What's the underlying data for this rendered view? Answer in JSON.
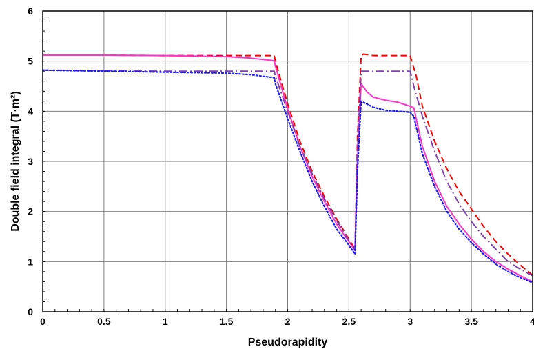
{
  "chart_data": {
    "type": "line",
    "title": "",
    "xlabel": "Pseudorapidity",
    "ylabel": "Double field integral (T·m²)",
    "xlim": [
      0,
      4
    ],
    "ylim": [
      0,
      6
    ],
    "xticks": [
      "0",
      "0.5",
      "1",
      "1.5",
      "2",
      "2.5",
      "3",
      "3.5",
      "4"
    ],
    "yticks": [
      "0",
      "1",
      "2",
      "3",
      "4",
      "5",
      "6"
    ],
    "grid": true,
    "legend": "none",
    "series": [
      {
        "style": "dashed",
        "color": "#ff0000",
        "x": [
          0,
          0.5,
          1,
          1.5,
          1.89,
          1.9,
          2.0,
          2.1,
          2.2,
          2.3,
          2.4,
          2.5,
          2.55,
          2.57,
          2.6,
          2.62,
          2.7,
          2.8,
          3.0,
          3.05,
          3.1,
          3.2,
          3.3,
          3.4,
          3.5,
          3.6,
          3.7,
          3.8,
          3.9,
          4.0
        ],
        "y": [
          5.12,
          5.12,
          5.11,
          5.11,
          5.11,
          5.0,
          4.15,
          3.4,
          2.8,
          2.3,
          1.85,
          1.45,
          1.25,
          3.5,
          5.1,
          5.14,
          5.11,
          5.11,
          5.11,
          4.7,
          4.1,
          3.4,
          2.85,
          2.4,
          2.05,
          1.7,
          1.4,
          1.15,
          0.93,
          0.73
        ]
      },
      {
        "style": "solid",
        "color": "#ff33cc",
        "x": [
          0,
          0.5,
          1,
          1.5,
          1.7,
          1.89,
          1.9,
          2.0,
          2.1,
          2.2,
          2.3,
          2.4,
          2.5,
          2.55,
          2.57,
          2.6,
          2.65,
          2.7,
          2.8,
          2.9,
          3.0,
          3.03,
          3.1,
          3.2,
          3.3,
          3.4,
          3.5,
          3.6,
          3.7,
          3.8,
          3.9,
          4.0
        ],
        "y": [
          5.12,
          5.12,
          5.11,
          5.09,
          5.06,
          5.01,
          4.9,
          4.05,
          3.3,
          2.7,
          2.2,
          1.75,
          1.4,
          1.22,
          3.0,
          4.55,
          4.38,
          4.28,
          4.22,
          4.18,
          4.1,
          4.07,
          3.3,
          2.6,
          2.1,
          1.75,
          1.45,
          1.2,
          1.0,
          0.85,
          0.72,
          0.6
        ]
      },
      {
        "style": "dashdot",
        "color": "#8040b0",
        "x": [
          0,
          0.5,
          1,
          1.5,
          1.89,
          1.9,
          2.0,
          2.1,
          2.2,
          2.3,
          2.4,
          2.5,
          2.55,
          2.57,
          2.6,
          2.7,
          2.8,
          3.0,
          3.03,
          3.1,
          3.2,
          3.3,
          3.4,
          3.5,
          3.6,
          3.7,
          3.8,
          3.9,
          4.0
        ],
        "y": [
          4.82,
          4.81,
          4.8,
          4.8,
          4.8,
          4.7,
          4.0,
          3.3,
          2.75,
          2.25,
          1.82,
          1.42,
          1.24,
          3.2,
          4.8,
          4.8,
          4.8,
          4.8,
          4.5,
          3.9,
          3.2,
          2.6,
          2.15,
          1.8,
          1.5,
          1.25,
          1.0,
          0.85,
          0.72
        ]
      },
      {
        "style": "dotted",
        "color": "#1a1aff",
        "x": [
          0,
          0.5,
          1,
          1.5,
          1.7,
          1.89,
          1.9,
          2.0,
          2.1,
          2.2,
          2.3,
          2.4,
          2.5,
          2.55,
          2.57,
          2.6,
          2.7,
          2.8,
          2.9,
          3.0,
          3.03,
          3.1,
          3.2,
          3.3,
          3.4,
          3.5,
          3.6,
          3.7,
          3.8,
          3.9,
          4.0
        ],
        "y": [
          4.82,
          4.8,
          4.78,
          4.76,
          4.73,
          4.67,
          4.55,
          3.85,
          3.2,
          2.6,
          2.1,
          1.65,
          1.33,
          1.15,
          2.8,
          4.2,
          4.08,
          4.02,
          4.0,
          3.98,
          3.9,
          3.15,
          2.5,
          2.0,
          1.65,
          1.38,
          1.15,
          0.95,
          0.8,
          0.68,
          0.58
        ]
      }
    ]
  }
}
